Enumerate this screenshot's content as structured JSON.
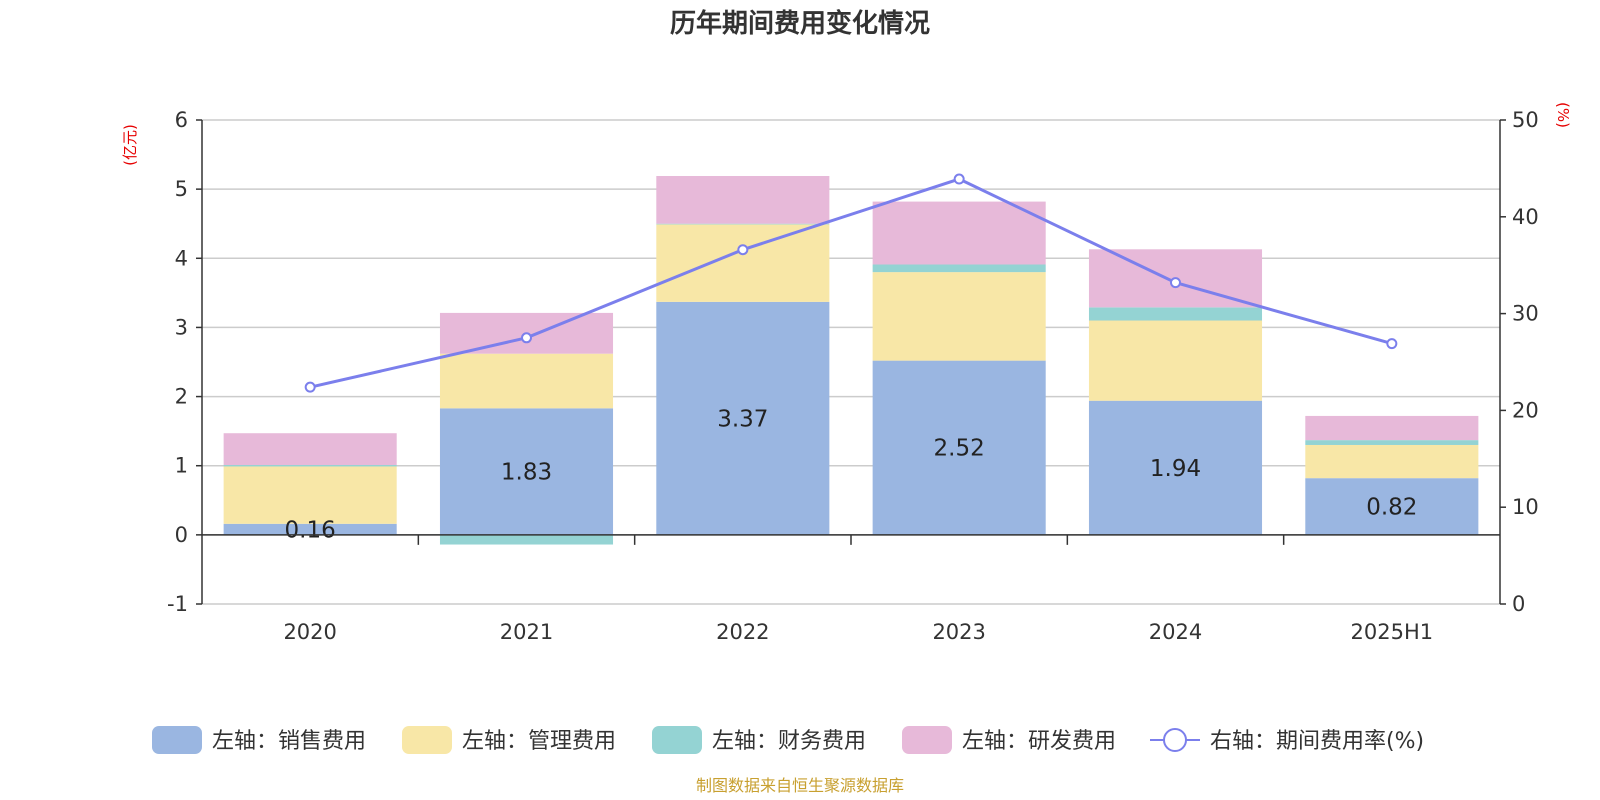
{
  "chart_data": {
    "type": "bar",
    "title": "历年期间费用变化情况",
    "categories": [
      "2020",
      "2021",
      "2022",
      "2023",
      "2024",
      "2025H1"
    ],
    "left_axis": {
      "unit": "(亿元)",
      "ylim": [
        -1,
        6
      ],
      "ticks": [
        -1,
        0,
        1,
        2,
        3,
        4,
        5,
        6
      ]
    },
    "right_axis": {
      "unit": "(%)",
      "ylim": [
        0,
        50
      ],
      "ticks": [
        0,
        10,
        20,
        30,
        40,
        50
      ]
    },
    "series": [
      {
        "name": "左轴：销售费用",
        "type": "bar",
        "stack": "left",
        "axis": "left",
        "color": "#9ab6e1",
        "values": [
          0.16,
          1.83,
          3.37,
          2.52,
          1.94,
          0.82
        ],
        "labels": [
          "0.16",
          "1.83",
          "3.37",
          "2.52",
          "1.94",
          "0.82"
        ]
      },
      {
        "name": "左轴：管理费用",
        "type": "bar",
        "stack": "left",
        "axis": "left",
        "color": "#f8e7a7",
        "values": [
          0.83,
          0.79,
          1.12,
          1.28,
          1.16,
          0.48
        ]
      },
      {
        "name": "左轴：财务费用",
        "type": "bar",
        "stack": "left",
        "axis": "left",
        "color": "#94d3d3",
        "values": [
          0.02,
          -0.14,
          0.01,
          0.11,
          0.19,
          0.07
        ]
      },
      {
        "name": "左轴：研发费用",
        "type": "bar",
        "stack": "left",
        "axis": "left",
        "color": "#e7b9d9",
        "values": [
          0.46,
          0.59,
          0.69,
          0.91,
          0.84,
          0.35
        ]
      },
      {
        "name": "右轴：期间费用率(%)",
        "type": "line",
        "axis": "right",
        "color": "#7b7fec",
        "values": [
          22.4,
          27.5,
          36.6,
          43.9,
          33.2,
          26.9
        ]
      }
    ],
    "grid": true,
    "legend_position": "bottom"
  },
  "footer": {
    "source": "制图数据来自恒生聚源数据库"
  }
}
